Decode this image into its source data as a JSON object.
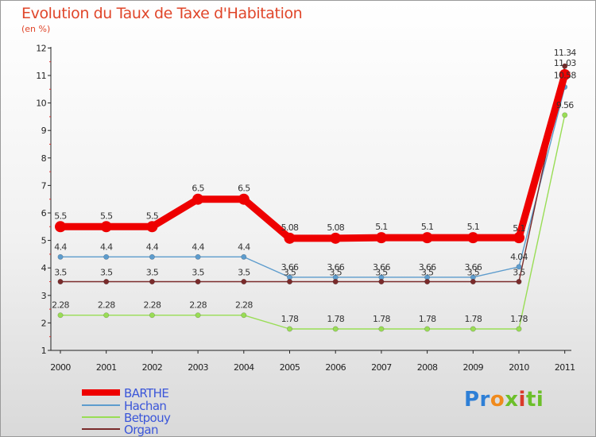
{
  "title": "Evolution du Taux de Taxe d'Habitation",
  "unit": "(en %)",
  "logo": {
    "text": "Proxiti",
    "letters": [
      "Pr",
      "o",
      "x",
      "i",
      "ti"
    ]
  },
  "colors": {
    "BARTHE": "#ee0000",
    "Hachan": "#5d9ccd",
    "Betpouy": "#99dd55",
    "Organ": "#7a2b2b"
  },
  "chart_data": {
    "type": "line",
    "title": "Evolution du Taux de Taxe d'Habitation",
    "ylabel": "(en %)",
    "xlabel": "",
    "x": [
      "2000",
      "2001",
      "2002",
      "2003",
      "2004",
      "2005",
      "2006",
      "2007",
      "2008",
      "2009",
      "2010",
      "2011"
    ],
    "y_ticks": [
      "1",
      "2",
      "3",
      "4",
      "5",
      "6",
      "7",
      "8",
      "9",
      "10",
      "11",
      "12"
    ],
    "ylim": [
      1,
      12
    ],
    "grid": false,
    "legend": "bottom-left",
    "series": [
      {
        "name": "BARTHE",
        "values": [
          5.5,
          5.5,
          5.5,
          6.5,
          6.5,
          5.08,
          5.08,
          5.1,
          5.1,
          5.1,
          5.1,
          11.03
        ],
        "labels": [
          "5.5",
          "5.5",
          "5.5",
          "6.5",
          "6.5",
          "5.08",
          "5.08",
          "5.1",
          "5.1",
          "5.1",
          "5.1",
          "11.03"
        ]
      },
      {
        "name": "Hachan",
        "values": [
          4.4,
          4.4,
          4.4,
          4.4,
          4.4,
          3.66,
          3.66,
          3.66,
          3.66,
          3.66,
          4.04,
          10.58
        ],
        "labels": [
          "4.4",
          "4.4",
          "4.4",
          "4.4",
          "4.4",
          "3.66",
          "3.66",
          "3.66",
          "3.66",
          "3.66",
          "4.04",
          "10.58"
        ]
      },
      {
        "name": "Betpouy",
        "values": [
          2.28,
          2.28,
          2.28,
          2.28,
          2.28,
          1.78,
          1.78,
          1.78,
          1.78,
          1.78,
          1.78,
          9.56
        ],
        "labels": [
          "2.28",
          "2.28",
          "2.28",
          "2.28",
          "2.28",
          "1.78",
          "1.78",
          "1.78",
          "1.78",
          "1.78",
          "1.78",
          "9.56"
        ]
      },
      {
        "name": "Organ",
        "values": [
          3.5,
          3.5,
          3.5,
          3.5,
          3.5,
          3.5,
          3.5,
          3.5,
          3.5,
          3.5,
          3.5,
          11.34
        ],
        "labels": [
          "3.5",
          "3.5",
          "3.5",
          "3.5",
          "3.5",
          "3.5",
          "3.5",
          "3.5",
          "3.5",
          "3.5",
          "3.5",
          "11.34"
        ]
      }
    ]
  }
}
